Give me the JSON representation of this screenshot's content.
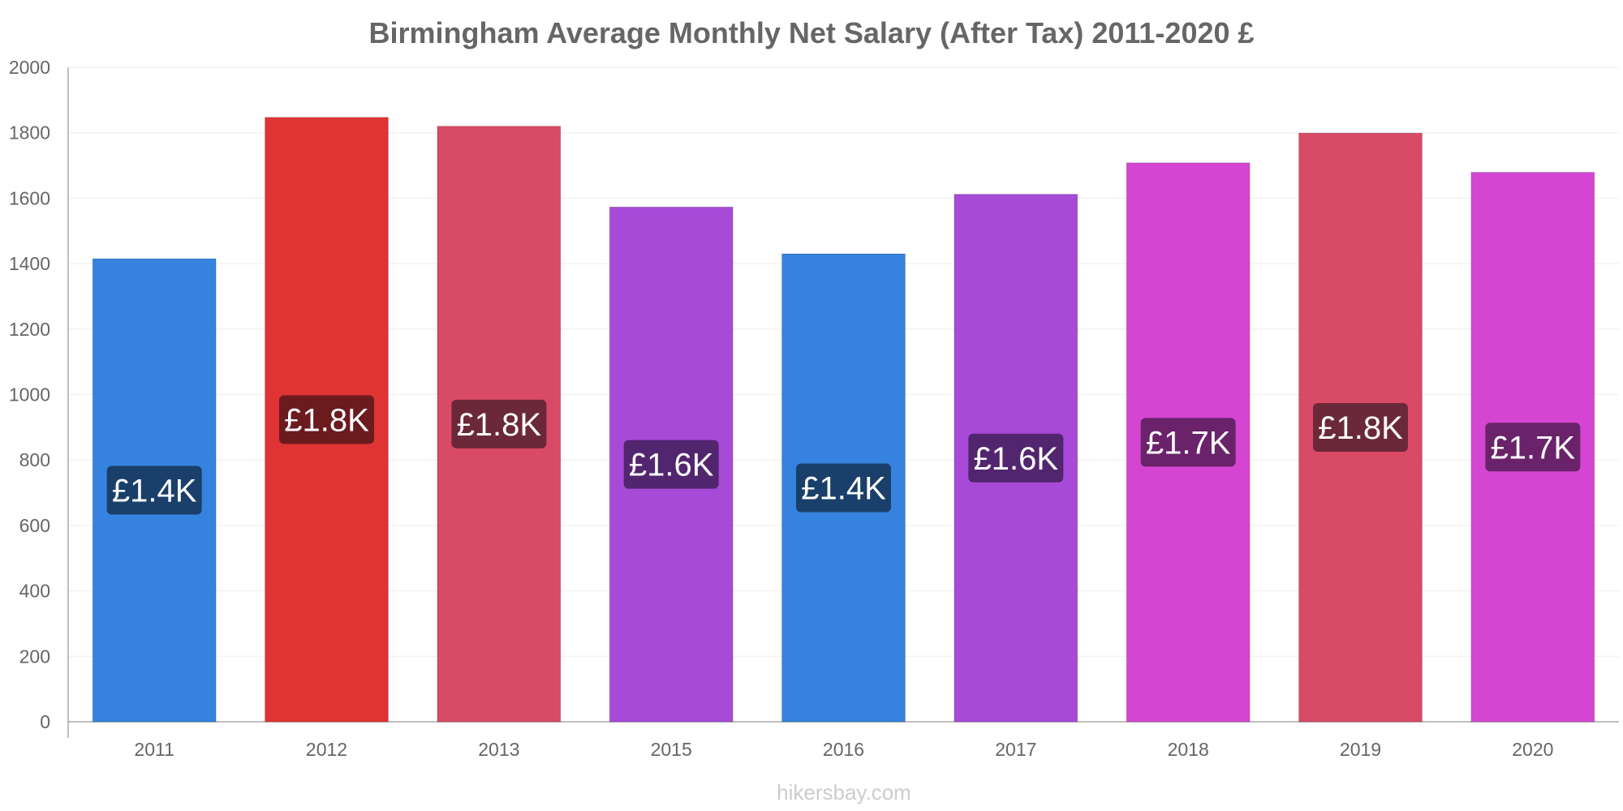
{
  "chart_data": {
    "type": "bar",
    "title": "Birmingham Average Monthly Net Salary (After Tax) 2011-2020 £",
    "xlabel": "",
    "ylabel": "",
    "categories": [
      "2011",
      "2012",
      "2013",
      "2015",
      "2016",
      "2017",
      "2018",
      "2019",
      "2020"
    ],
    "values": [
      1415,
      1847,
      1820,
      1573,
      1430,
      1612,
      1708,
      1799,
      1679
    ],
    "data_labels": [
      "£1.4K",
      "£1.8K",
      "£1.8K",
      "£1.6K",
      "£1.4K",
      "£1.6K",
      "£1.7K",
      "£1.8K",
      "£1.7K"
    ],
    "bar_colors": [
      "#3583de",
      "#e03434",
      "#d94a66",
      "#a74ad8",
      "#3583de",
      "#a74ad8",
      "#d446d2",
      "#d94a66",
      "#d446d2"
    ],
    "label_colors": [
      "#1a3f6a",
      "#6b1a1e",
      "#6b2838",
      "#52256f",
      "#1a3f6a",
      "#52256f",
      "#6a226a",
      "#6b2838",
      "#6a226a"
    ],
    "ylim": [
      0,
      2000
    ],
    "yticks": [
      "0",
      "200",
      "400",
      "600",
      "800",
      "1000",
      "1200",
      "1400",
      "1600",
      "1800",
      "2000"
    ],
    "grid": true,
    "legend": "none"
  },
  "watermark": "hikersbay.com"
}
